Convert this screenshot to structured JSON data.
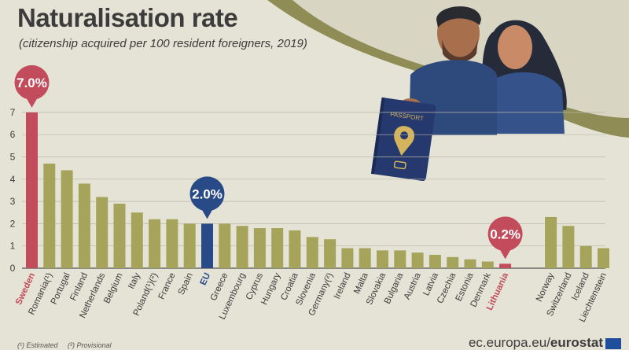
{
  "title": "Naturalisation rate",
  "subtitle": "(citizenship acquired per 100 resident foreigners, 2019)",
  "footnotes": [
    "(¹) Estimated",
    "(²) Provisional"
  ],
  "brand": {
    "prefix": "ec.europa.eu/",
    "name": "eurostat"
  },
  "colors": {
    "default": "#a5a45a",
    "highlight": "#c24b5c",
    "eu": "#284a86",
    "background": "#e5e3d5",
    "text": "#3c3c3c"
  },
  "callouts": [
    {
      "country": "Sweden",
      "label": "7.0%",
      "color": "#c24b5c"
    },
    {
      "country": "EU",
      "label": "2.0%",
      "color": "#284a86"
    },
    {
      "country": "Lithuania",
      "label": "0.2%",
      "color": "#c24b5c"
    }
  ],
  "chart_data": {
    "type": "bar",
    "title": "Naturalisation rate",
    "subtitle": "(citizenship acquired per 100 resident foreigners, 2019)",
    "xlabel": "",
    "ylabel": "",
    "ylim": [
      0,
      7
    ],
    "yticks": [
      0,
      1,
      2,
      3,
      4,
      5,
      6,
      7
    ],
    "grid": true,
    "categories": [
      "Sweden",
      "Romania(¹)",
      "Portugal",
      "Finland",
      "Netherlands",
      "Belgium",
      "Italy",
      "Poland(¹)(²)",
      "France",
      "Spain",
      "EU",
      "Greece",
      "Luxembourg",
      "Cyprus",
      "Hungary",
      "Croatia",
      "Slovenia",
      "Germany(²)",
      "Ireland",
      "Malta",
      "Slovakia",
      "Bulgaria",
      "Austria",
      "Latvia",
      "Czechia",
      "Estonia",
      "Denmark",
      "Lithuania",
      "Norway",
      "Switzerland",
      "Iceland",
      "Liechtenstein"
    ],
    "values": [
      7.0,
      4.7,
      4.4,
      3.8,
      3.2,
      2.9,
      2.5,
      2.2,
      2.2,
      2.0,
      2.0,
      2.0,
      1.9,
      1.8,
      1.8,
      1.7,
      1.4,
      1.3,
      0.9,
      0.9,
      0.8,
      0.8,
      0.7,
      0.6,
      0.5,
      0.4,
      0.3,
      0.2,
      2.3,
      1.9,
      1.0,
      0.9
    ],
    "highlight": {
      "Sweden": "#c24b5c",
      "EU": "#284a86",
      "Lithuania": "#c24b5c"
    }
  }
}
